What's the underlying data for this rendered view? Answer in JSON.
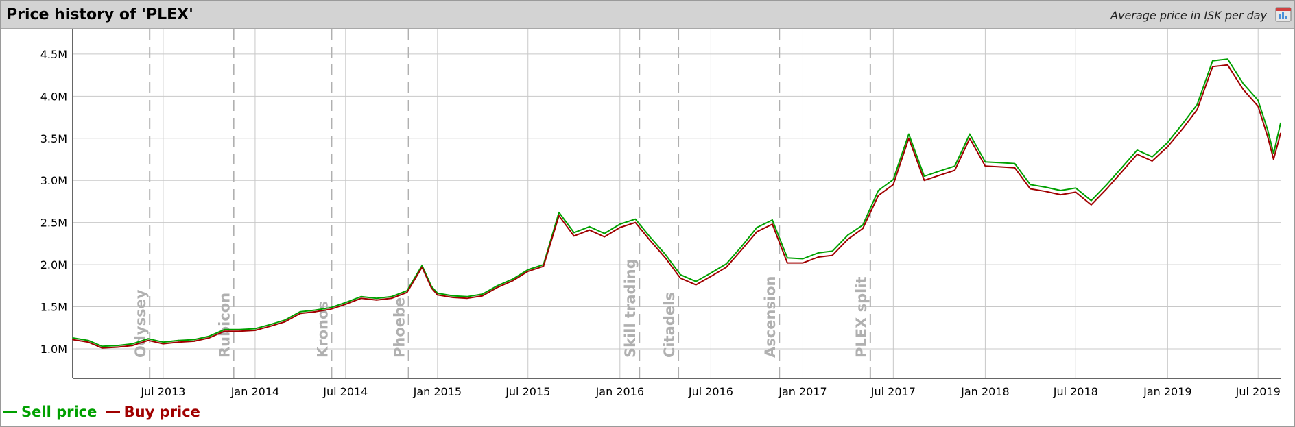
{
  "header": {
    "title": "Price history of 'PLEX'",
    "subtitle": "Average price in ISK per day",
    "export_icon": "chart-export-icon"
  },
  "legend": {
    "items": [
      {
        "label": "Sell price",
        "color": "#00a000"
      },
      {
        "label": "Buy price",
        "color": "#a00000"
      }
    ]
  },
  "colors": {
    "sell": "#00a000",
    "buy": "#a00000",
    "grid": "#c8c8c8",
    "event_line": "#b0b0b0",
    "event_label": "#b0b0b0",
    "axis": "#333333"
  },
  "chart_data": {
    "type": "line",
    "title": "Price history of 'PLEX'",
    "subtitle": "Average price in ISK per day",
    "x_axis": {
      "type": "date",
      "range": [
        "2013-01-01",
        "2019-08-15"
      ],
      "tick_labels": [
        {
          "label": "Jul 2013",
          "date": "2013-07-01"
        },
        {
          "label": "Jan 2014",
          "date": "2014-01-01"
        },
        {
          "label": "Jul 2014",
          "date": "2014-07-01"
        },
        {
          "label": "Jan 2015",
          "date": "2015-01-01"
        },
        {
          "label": "Jul 2015",
          "date": "2015-07-01"
        },
        {
          "label": "Jan 2016",
          "date": "2016-01-01"
        },
        {
          "label": "Jul 2016",
          "date": "2016-07-01"
        },
        {
          "label": "Jan 2017",
          "date": "2017-01-01"
        },
        {
          "label": "Jul 2017",
          "date": "2017-07-01"
        },
        {
          "label": "Jan 2018",
          "date": "2018-01-01"
        },
        {
          "label": "Jul 2018",
          "date": "2018-07-01"
        },
        {
          "label": "Jan 2019",
          "date": "2019-01-01"
        },
        {
          "label": "Jul 2019",
          "date": "2019-07-01"
        }
      ]
    },
    "y_axis": {
      "range": [
        650000,
        4800000
      ],
      "ticks": [
        {
          "label": "1.0M",
          "value": 1000000
        },
        {
          "label": "1.5M",
          "value": 1500000
        },
        {
          "label": "2.0M",
          "value": 2000000
        },
        {
          "label": "2.5M",
          "value": 2500000
        },
        {
          "label": "3.0M",
          "value": 3000000
        },
        {
          "label": "3.5M",
          "value": 3500000
        },
        {
          "label": "4.0M",
          "value": 4000000
        },
        {
          "label": "4.5M",
          "value": 4500000
        }
      ]
    },
    "grid": true,
    "legend_position": "bottom-left",
    "events": [
      {
        "label": "Odyssey",
        "date": "2013-06-04"
      },
      {
        "label": "Rubicon",
        "date": "2013-11-19"
      },
      {
        "label": "Kronos",
        "date": "2014-06-03"
      },
      {
        "label": "Phoebe",
        "date": "2014-11-04"
      },
      {
        "label": "Skill trading",
        "date": "2016-02-09"
      },
      {
        "label": "Citadels",
        "date": "2016-04-27"
      },
      {
        "label": "Ascension",
        "date": "2016-11-15"
      },
      {
        "label": "PLEX split",
        "date": "2017-05-16"
      }
    ],
    "series": [
      {
        "name": "Sell price",
        "color": "#00a000",
        "points": [
          [
            "2013-01-01",
            1130000
          ],
          [
            "2013-02-01",
            1100000
          ],
          [
            "2013-03-01",
            1030000
          ],
          [
            "2013-04-01",
            1040000
          ],
          [
            "2013-05-01",
            1060000
          ],
          [
            "2013-06-01",
            1120000
          ],
          [
            "2013-07-01",
            1080000
          ],
          [
            "2013-08-01",
            1100000
          ],
          [
            "2013-09-01",
            1110000
          ],
          [
            "2013-10-01",
            1150000
          ],
          [
            "2013-11-01",
            1230000
          ],
          [
            "2013-12-01",
            1230000
          ],
          [
            "2014-01-01",
            1240000
          ],
          [
            "2014-02-01",
            1290000
          ],
          [
            "2014-03-01",
            1340000
          ],
          [
            "2014-04-01",
            1440000
          ],
          [
            "2014-05-01",
            1460000
          ],
          [
            "2014-06-01",
            1490000
          ],
          [
            "2014-07-01",
            1550000
          ],
          [
            "2014-08-01",
            1620000
          ],
          [
            "2014-09-01",
            1600000
          ],
          [
            "2014-10-01",
            1620000
          ],
          [
            "2014-11-01",
            1690000
          ],
          [
            "2014-12-01",
            1990000
          ],
          [
            "2014-12-20",
            1740000
          ],
          [
            "2015-01-01",
            1660000
          ],
          [
            "2015-02-01",
            1630000
          ],
          [
            "2015-03-01",
            1620000
          ],
          [
            "2015-04-01",
            1650000
          ],
          [
            "2015-05-01",
            1750000
          ],
          [
            "2015-06-01",
            1830000
          ],
          [
            "2015-07-01",
            1940000
          ],
          [
            "2015-08-01",
            2000000
          ],
          [
            "2015-09-01",
            2620000
          ],
          [
            "2015-10-01",
            2380000
          ],
          [
            "2015-11-01",
            2450000
          ],
          [
            "2015-12-01",
            2370000
          ],
          [
            "2016-01-01",
            2480000
          ],
          [
            "2016-02-01",
            2540000
          ],
          [
            "2016-03-01",
            2330000
          ],
          [
            "2016-04-01",
            2120000
          ],
          [
            "2016-05-01",
            1880000
          ],
          [
            "2016-06-01",
            1800000
          ],
          [
            "2016-07-01",
            1900000
          ],
          [
            "2016-08-01",
            2010000
          ],
          [
            "2016-09-01",
            2220000
          ],
          [
            "2016-10-01",
            2440000
          ],
          [
            "2016-11-01",
            2530000
          ],
          [
            "2016-12-01",
            2080000
          ],
          [
            "2017-01-01",
            2070000
          ],
          [
            "2017-02-01",
            2140000
          ],
          [
            "2017-03-01",
            2160000
          ],
          [
            "2017-04-01",
            2350000
          ],
          [
            "2017-05-01",
            2470000
          ],
          [
            "2017-06-01",
            2880000
          ],
          [
            "2017-07-01",
            3010000
          ],
          [
            "2017-08-01",
            3550000
          ],
          [
            "2017-09-01",
            3050000
          ],
          [
            "2017-10-01",
            3110000
          ],
          [
            "2017-11-01",
            3170000
          ],
          [
            "2017-12-01",
            3550000
          ],
          [
            "2018-01-01",
            3220000
          ],
          [
            "2018-02-01",
            3210000
          ],
          [
            "2018-03-01",
            3200000
          ],
          [
            "2018-04-01",
            2950000
          ],
          [
            "2018-05-01",
            2920000
          ],
          [
            "2018-06-01",
            2880000
          ],
          [
            "2018-07-01",
            2910000
          ],
          [
            "2018-08-01",
            2760000
          ],
          [
            "2018-09-01",
            2950000
          ],
          [
            "2018-10-01",
            3150000
          ],
          [
            "2018-11-01",
            3360000
          ],
          [
            "2018-12-01",
            3280000
          ],
          [
            "2019-01-01",
            3450000
          ],
          [
            "2019-02-01",
            3680000
          ],
          [
            "2019-03-01",
            3900000
          ],
          [
            "2019-04-01",
            4420000
          ],
          [
            "2019-05-01",
            4440000
          ],
          [
            "2019-06-01",
            4150000
          ],
          [
            "2019-07-01",
            3950000
          ],
          [
            "2019-07-20",
            3600000
          ],
          [
            "2019-08-01",
            3320000
          ],
          [
            "2019-08-15",
            3680000
          ]
        ]
      },
      {
        "name": "Buy price",
        "color": "#a00000",
        "points": [
          [
            "2013-01-01",
            1110000
          ],
          [
            "2013-02-01",
            1080000
          ],
          [
            "2013-03-01",
            1010000
          ],
          [
            "2013-04-01",
            1020000
          ],
          [
            "2013-05-01",
            1040000
          ],
          [
            "2013-06-01",
            1100000
          ],
          [
            "2013-07-01",
            1060000
          ],
          [
            "2013-08-01",
            1080000
          ],
          [
            "2013-09-01",
            1090000
          ],
          [
            "2013-10-01",
            1130000
          ],
          [
            "2013-11-01",
            1210000
          ],
          [
            "2013-12-01",
            1210000
          ],
          [
            "2014-01-01",
            1220000
          ],
          [
            "2014-02-01",
            1270000
          ],
          [
            "2014-03-01",
            1320000
          ],
          [
            "2014-04-01",
            1420000
          ],
          [
            "2014-05-01",
            1440000
          ],
          [
            "2014-06-01",
            1470000
          ],
          [
            "2014-07-01",
            1530000
          ],
          [
            "2014-08-01",
            1600000
          ],
          [
            "2014-09-01",
            1580000
          ],
          [
            "2014-10-01",
            1600000
          ],
          [
            "2014-11-01",
            1670000
          ],
          [
            "2014-12-01",
            1970000
          ],
          [
            "2014-12-20",
            1720000
          ],
          [
            "2015-01-01",
            1640000
          ],
          [
            "2015-02-01",
            1610000
          ],
          [
            "2015-03-01",
            1600000
          ],
          [
            "2015-04-01",
            1630000
          ],
          [
            "2015-05-01",
            1730000
          ],
          [
            "2015-06-01",
            1810000
          ],
          [
            "2015-07-01",
            1920000
          ],
          [
            "2015-08-01",
            1980000
          ],
          [
            "2015-09-01",
            2580000
          ],
          [
            "2015-10-01",
            2340000
          ],
          [
            "2015-11-01",
            2410000
          ],
          [
            "2015-12-01",
            2330000
          ],
          [
            "2016-01-01",
            2440000
          ],
          [
            "2016-02-01",
            2500000
          ],
          [
            "2016-03-01",
            2290000
          ],
          [
            "2016-04-01",
            2080000
          ],
          [
            "2016-05-01",
            1840000
          ],
          [
            "2016-06-01",
            1760000
          ],
          [
            "2016-07-01",
            1860000
          ],
          [
            "2016-08-01",
            1970000
          ],
          [
            "2016-09-01",
            2180000
          ],
          [
            "2016-10-01",
            2390000
          ],
          [
            "2016-11-01",
            2480000
          ],
          [
            "2016-12-01",
            2020000
          ],
          [
            "2017-01-01",
            2020000
          ],
          [
            "2017-02-01",
            2090000
          ],
          [
            "2017-03-01",
            2110000
          ],
          [
            "2017-04-01",
            2300000
          ],
          [
            "2017-05-01",
            2430000
          ],
          [
            "2017-06-01",
            2820000
          ],
          [
            "2017-07-01",
            2950000
          ],
          [
            "2017-08-01",
            3500000
          ],
          [
            "2017-09-01",
            3000000
          ],
          [
            "2017-10-01",
            3060000
          ],
          [
            "2017-11-01",
            3120000
          ],
          [
            "2017-12-01",
            3500000
          ],
          [
            "2018-01-01",
            3170000
          ],
          [
            "2018-02-01",
            3160000
          ],
          [
            "2018-03-01",
            3150000
          ],
          [
            "2018-04-01",
            2900000
          ],
          [
            "2018-05-01",
            2870000
          ],
          [
            "2018-06-01",
            2830000
          ],
          [
            "2018-07-01",
            2860000
          ],
          [
            "2018-08-01",
            2710000
          ],
          [
            "2018-09-01",
            2900000
          ],
          [
            "2018-10-01",
            3100000
          ],
          [
            "2018-11-01",
            3310000
          ],
          [
            "2018-12-01",
            3230000
          ],
          [
            "2019-01-01",
            3400000
          ],
          [
            "2019-02-01",
            3620000
          ],
          [
            "2019-03-01",
            3840000
          ],
          [
            "2019-04-01",
            4350000
          ],
          [
            "2019-05-01",
            4370000
          ],
          [
            "2019-06-01",
            4080000
          ],
          [
            "2019-07-01",
            3880000
          ],
          [
            "2019-07-20",
            3520000
          ],
          [
            "2019-08-01",
            3250000
          ],
          [
            "2019-08-15",
            3560000
          ]
        ]
      }
    ]
  }
}
